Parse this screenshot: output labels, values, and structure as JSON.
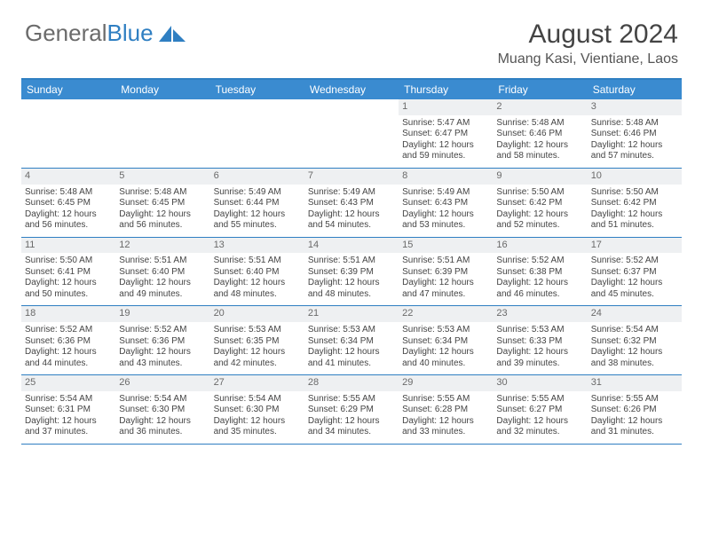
{
  "brand": {
    "part1": "General",
    "part2": "Blue"
  },
  "title": {
    "month": "August 2024",
    "location": "Muang Kasi, Vientiane, Laos"
  },
  "colors": {
    "header_bg": "#3a8bd0",
    "divider": "#2f7fc2",
    "daynum_bg": "#eef0f2",
    "text": "#444444",
    "logo_gray": "#6b6b6b",
    "logo_blue": "#2f7fc2"
  },
  "day_names": [
    "Sunday",
    "Monday",
    "Tuesday",
    "Wednesday",
    "Thursday",
    "Friday",
    "Saturday"
  ],
  "weeks": [
    [
      {
        "blank": true
      },
      {
        "blank": true
      },
      {
        "blank": true
      },
      {
        "blank": true
      },
      {
        "n": "1",
        "sr": "5:47 AM",
        "ss": "6:47 PM",
        "dl": "12 hours and 59 minutes."
      },
      {
        "n": "2",
        "sr": "5:48 AM",
        "ss": "6:46 PM",
        "dl": "12 hours and 58 minutes."
      },
      {
        "n": "3",
        "sr": "5:48 AM",
        "ss": "6:46 PM",
        "dl": "12 hours and 57 minutes."
      }
    ],
    [
      {
        "n": "4",
        "sr": "5:48 AM",
        "ss": "6:45 PM",
        "dl": "12 hours and 56 minutes."
      },
      {
        "n": "5",
        "sr": "5:48 AM",
        "ss": "6:45 PM",
        "dl": "12 hours and 56 minutes."
      },
      {
        "n": "6",
        "sr": "5:49 AM",
        "ss": "6:44 PM",
        "dl": "12 hours and 55 minutes."
      },
      {
        "n": "7",
        "sr": "5:49 AM",
        "ss": "6:43 PM",
        "dl": "12 hours and 54 minutes."
      },
      {
        "n": "8",
        "sr": "5:49 AM",
        "ss": "6:43 PM",
        "dl": "12 hours and 53 minutes."
      },
      {
        "n": "9",
        "sr": "5:50 AM",
        "ss": "6:42 PM",
        "dl": "12 hours and 52 minutes."
      },
      {
        "n": "10",
        "sr": "5:50 AM",
        "ss": "6:42 PM",
        "dl": "12 hours and 51 minutes."
      }
    ],
    [
      {
        "n": "11",
        "sr": "5:50 AM",
        "ss": "6:41 PM",
        "dl": "12 hours and 50 minutes."
      },
      {
        "n": "12",
        "sr": "5:51 AM",
        "ss": "6:40 PM",
        "dl": "12 hours and 49 minutes."
      },
      {
        "n": "13",
        "sr": "5:51 AM",
        "ss": "6:40 PM",
        "dl": "12 hours and 48 minutes."
      },
      {
        "n": "14",
        "sr": "5:51 AM",
        "ss": "6:39 PM",
        "dl": "12 hours and 48 minutes."
      },
      {
        "n": "15",
        "sr": "5:51 AM",
        "ss": "6:39 PM",
        "dl": "12 hours and 47 minutes."
      },
      {
        "n": "16",
        "sr": "5:52 AM",
        "ss": "6:38 PM",
        "dl": "12 hours and 46 minutes."
      },
      {
        "n": "17",
        "sr": "5:52 AM",
        "ss": "6:37 PM",
        "dl": "12 hours and 45 minutes."
      }
    ],
    [
      {
        "n": "18",
        "sr": "5:52 AM",
        "ss": "6:36 PM",
        "dl": "12 hours and 44 minutes."
      },
      {
        "n": "19",
        "sr": "5:52 AM",
        "ss": "6:36 PM",
        "dl": "12 hours and 43 minutes."
      },
      {
        "n": "20",
        "sr": "5:53 AM",
        "ss": "6:35 PM",
        "dl": "12 hours and 42 minutes."
      },
      {
        "n": "21",
        "sr": "5:53 AM",
        "ss": "6:34 PM",
        "dl": "12 hours and 41 minutes."
      },
      {
        "n": "22",
        "sr": "5:53 AM",
        "ss": "6:34 PM",
        "dl": "12 hours and 40 minutes."
      },
      {
        "n": "23",
        "sr": "5:53 AM",
        "ss": "6:33 PM",
        "dl": "12 hours and 39 minutes."
      },
      {
        "n": "24",
        "sr": "5:54 AM",
        "ss": "6:32 PM",
        "dl": "12 hours and 38 minutes."
      }
    ],
    [
      {
        "n": "25",
        "sr": "5:54 AM",
        "ss": "6:31 PM",
        "dl": "12 hours and 37 minutes."
      },
      {
        "n": "26",
        "sr": "5:54 AM",
        "ss": "6:30 PM",
        "dl": "12 hours and 36 minutes."
      },
      {
        "n": "27",
        "sr": "5:54 AM",
        "ss": "6:30 PM",
        "dl": "12 hours and 35 minutes."
      },
      {
        "n": "28",
        "sr": "5:55 AM",
        "ss": "6:29 PM",
        "dl": "12 hours and 34 minutes."
      },
      {
        "n": "29",
        "sr": "5:55 AM",
        "ss": "6:28 PM",
        "dl": "12 hours and 33 minutes."
      },
      {
        "n": "30",
        "sr": "5:55 AM",
        "ss": "6:27 PM",
        "dl": "12 hours and 32 minutes."
      },
      {
        "n": "31",
        "sr": "5:55 AM",
        "ss": "6:26 PM",
        "dl": "12 hours and 31 minutes."
      }
    ]
  ],
  "labels": {
    "sunrise": "Sunrise: ",
    "sunset": "Sunset: ",
    "daylight": "Daylight: "
  }
}
